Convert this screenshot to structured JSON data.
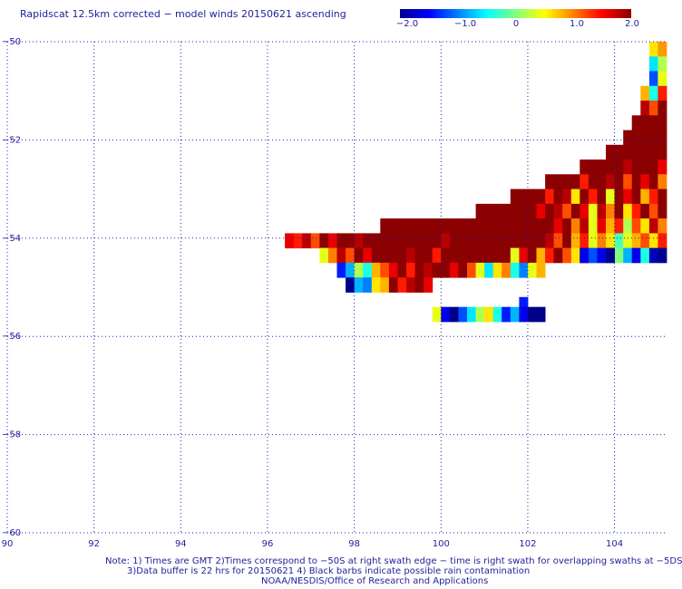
{
  "title": "Rapidscat 12.5km corrected − model winds 20150621 ascending",
  "colorbar": {
    "ticks": [
      "−2.0",
      "−1.0",
      "0",
      "1.0",
      "2.0"
    ],
    "colors": [
      "#00008b",
      "#0000ff",
      "#0080ff",
      "#00ffff",
      "#80ff80",
      "#ffff00",
      "#ff8000",
      "#ff0000",
      "#8b0000"
    ],
    "range": [
      -2.0,
      2.0
    ]
  },
  "notes": {
    "line1": "Note: 1) Times are GMT 2)Times correspond to −50S at right swath edge − time is right swath for overlapping swaths at −5DS",
    "line2": "3)Data buffer is 22 hrs for 20150621 4) Black barbs indicate possible rain contamination",
    "line3": "NOAA/NESDIS/Office of Research and Applications"
  },
  "chart_data": {
    "type": "heatmap",
    "title": "Rapidscat 12.5km corrected − model winds 20150621 ascending",
    "xlabel": "",
    "ylabel": "",
    "xlim": [
      90,
      105.2
    ],
    "ylim": [
      -60,
      -50
    ],
    "x_ticks": [
      "90",
      "92",
      "94",
      "96",
      "98",
      "100",
      "102",
      "104"
    ],
    "y_ticks": [
      "−50",
      "−52",
      "−54",
      "−56",
      "−58",
      "−60"
    ],
    "grid": "dotted",
    "colorbar_range": [
      -2.0,
      2.0
    ],
    "cell_size_deg": 0.2,
    "swath_rows": [
      {
        "lat": -50.0,
        "x0": 104.8,
        "x1": 105.2,
        "values": [
          0.6,
          0.9
        ]
      },
      {
        "lat": -50.3,
        "x0": 104.8,
        "x1": 105.2,
        "values": [
          -0.6,
          0.2
        ]
      },
      {
        "lat": -50.6,
        "x0": 104.8,
        "x1": 105.2,
        "values": [
          -1.2,
          0.4
        ]
      },
      {
        "lat": -50.9,
        "x0": 104.6,
        "x1": 105.2,
        "values": [
          0.8,
          -0.4,
          1.4
        ]
      },
      {
        "lat": -51.2,
        "x0": 104.6,
        "x1": 105.2,
        "values": [
          1.8,
          1.2,
          2.0
        ]
      },
      {
        "lat": -51.5,
        "x0": 104.4,
        "x1": 105.2,
        "values": [
          2.4,
          2.2,
          2.4,
          2.6
        ]
      },
      {
        "lat": -51.8,
        "x0": 104.2,
        "x1": 105.2,
        "values": [
          2.6,
          2.4,
          2.6,
          2.4,
          2.6
        ]
      },
      {
        "lat": -52.1,
        "x0": 103.8,
        "x1": 105.2,
        "values": [
          2.5,
          2.6,
          2.6,
          2.4,
          2.6,
          2.6,
          2.6
        ]
      },
      {
        "lat": -52.4,
        "x0": 103.2,
        "x1": 105.2,
        "values": [
          2.6,
          2.6,
          2.4,
          2.6,
          2.6,
          1.8,
          2.2,
          2.6,
          2.6,
          1.6
        ]
      },
      {
        "lat": -52.7,
        "x0": 102.4,
        "x1": 105.2,
        "values": [
          2.6,
          2.2,
          2.6,
          2.6,
          1.4,
          2.6,
          2.6,
          1.8,
          2.2,
          1.2,
          2.6,
          1.6,
          2.4,
          1.0
        ]
      },
      {
        "lat": -53.0,
        "x0": 101.6,
        "x1": 105.2,
        "values": [
          2.6,
          2.6,
          2.2,
          2.6,
          1.4,
          2.6,
          1.8,
          0.6,
          2.6,
          1.4,
          2.0,
          0.4,
          2.6,
          1.6,
          2.2,
          0.8,
          1.4,
          2.4
        ]
      },
      {
        "lat": -53.3,
        "x0": 100.8,
        "x1": 105.2,
        "values": [
          2.6,
          2.6,
          2.6,
          2.6,
          2.4,
          2.6,
          2.0,
          1.6,
          2.6,
          1.8,
          1.2,
          2.2,
          1.6,
          0.4,
          1.8,
          1.0,
          2.2,
          0.6,
          1.4,
          2.0,
          1.2,
          2.4
        ]
      },
      {
        "lat": -53.6,
        "x0": 98.6,
        "x1": 105.2,
        "values": [
          2.4,
          2.6,
          2.6,
          2.6,
          2.6,
          2.6,
          2.6,
          2.6,
          2.6,
          2.6,
          2.6,
          2.6,
          2.6,
          2.6,
          2.6,
          2.6,
          2.6,
          2.6,
          2.2,
          2.6,
          1.6,
          2.2,
          1.0,
          1.8,
          0.4,
          1.6,
          0.8,
          1.4,
          0.2,
          1.2,
          0.6,
          1.8,
          1.0
        ]
      },
      {
        "lat": -53.9,
        "x0": 96.4,
        "x1": 105.2,
        "values": [
          1.6,
          1.4,
          1.8,
          1.2,
          2.2,
          1.6,
          2.0,
          2.2,
          1.8,
          2.4,
          2.6,
          2.6,
          2.6,
          2.6,
          2.6,
          2.6,
          2.6,
          2.2,
          1.8,
          2.6,
          2.6,
          2.6,
          2.6,
          2.6,
          2.6,
          2.6,
          2.6,
          2.6,
          2.2,
          2.6,
          1.8,
          1.2,
          2.0,
          0.8,
          1.4,
          0.4,
          1.0,
          0.6,
          -0.2,
          0.4,
          0.8,
          1.2,
          0.6,
          1.4
        ]
      },
      {
        "lat": -54.2,
        "x0": 97.2,
        "x1": 105.2,
        "values": [
          0.4,
          1.0,
          1.8,
          1.2,
          2.0,
          1.6,
          2.4,
          2.6,
          2.6,
          2.6,
          1.8,
          2.2,
          2.6,
          1.4,
          2.6,
          2.6,
          2.6,
          2.4,
          2.6,
          2.6,
          2.2,
          2.6,
          0.4,
          1.6,
          2.2,
          0.8,
          1.4,
          2.0,
          1.2,
          0.6,
          1.8,
          -0.6,
          0.2,
          -1.2,
          0.0,
          -0.8,
          -1.6,
          -0.4,
          -1.8,
          -2.2
        ]
      },
      {
        "lat": -54.5,
        "x0": 97.6,
        "x1": 102.4,
        "values": [
          -1.4,
          -0.8,
          0.2,
          -0.4,
          0.8,
          1.2,
          1.6,
          2.0,
          1.4,
          2.2,
          1.8,
          2.6,
          2.4,
          1.6,
          2.0,
          1.2,
          0.4,
          -0.6,
          0.6,
          1.0,
          -0.4,
          -1.0,
          0.4,
          0.8
        ]
      },
      {
        "lat": -54.8,
        "x0": 97.8,
        "x1": 99.8,
        "values": [
          -2.2,
          -0.8,
          -1.0,
          0.6,
          0.8,
          2.2,
          1.4,
          1.8,
          2.0,
          1.6
        ]
      },
      {
        "lat": -55.2,
        "x0": 101.8,
        "x1": 102.0,
        "values": [
          -1.4
        ]
      },
      {
        "lat": -55.4,
        "x0": 99.8,
        "x1": 102.4,
        "values": [
          0.4,
          -1.6,
          -2.2,
          -1.2,
          -0.6,
          0.2,
          0.6,
          -0.4,
          -1.4,
          -0.8,
          -1.6,
          -2.0,
          -2.4
        ]
      }
    ],
    "east_edge_rows": [
      {
        "lat": -54.2,
        "x0": 103.2,
        "x1": 104.0,
        "values": [
          -1.6,
          -1.2,
          -1.6,
          -2.4
        ]
      }
    ]
  }
}
